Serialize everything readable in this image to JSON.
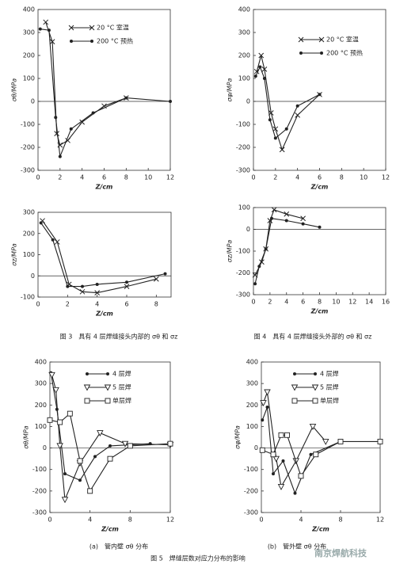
{
  "chart_data": [
    {
      "type": "line",
      "ylabel": "σθ/MPa",
      "xlabel": "Z/cm",
      "xlim": [
        0,
        12
      ],
      "xticks": [
        0,
        2,
        4,
        6,
        8,
        10,
        12
      ],
      "ylim": [
        -300,
        400
      ],
      "yticks": [
        -300,
        -200,
        -100,
        0,
        100,
        200,
        300,
        400
      ],
      "series": [
        {
          "name": "20 °C 室温",
          "marker": "x",
          "color": "#222",
          "x": [
            0.7,
            1.3,
            1.7,
            2,
            2.7,
            4,
            6,
            8
          ],
          "values": [
            345,
            260,
            -140,
            -190,
            -170,
            -90,
            -20,
            15
          ]
        },
        {
          "name": "200 °C 预热",
          "marker": "dot",
          "color": "#222",
          "x": [
            0.2,
            1,
            1.6,
            2,
            3,
            5,
            8,
            12
          ],
          "values": [
            315,
            310,
            -70,
            -240,
            -120,
            -50,
            15,
            0
          ]
        }
      ]
    },
    {
      "type": "line",
      "ylabel": "σφ/MPa",
      "xlabel": "Z/cm",
      "xlim": [
        0,
        12
      ],
      "xticks": [
        0,
        2,
        4,
        6,
        8,
        10,
        12
      ],
      "ylim": [
        -300,
        400
      ],
      "yticks": [
        -300,
        -200,
        -100,
        0,
        100,
        200,
        300,
        400
      ],
      "series": [
        {
          "name": "20 °C 室温",
          "marker": "x",
          "color": "#222",
          "x": [
            0.3,
            0.7,
            1,
            1.6,
            2,
            2.6,
            4,
            6
          ],
          "values": [
            130,
            200,
            140,
            -50,
            -120,
            -210,
            -60,
            30
          ]
        },
        {
          "name": "200 °C 预热",
          "marker": "dot",
          "color": "#222",
          "x": [
            0.2,
            0.6,
            1,
            1.5,
            2,
            3,
            4,
            6
          ],
          "values": [
            110,
            150,
            100,
            -80,
            -160,
            -120,
            -20,
            30
          ]
        }
      ]
    },
    {
      "type": "line",
      "ylabel": "σz/MPa",
      "xlabel": "Z/cm",
      "xlim": [
        0,
        9
      ],
      "xticks": [
        0,
        2,
        4,
        6,
        8
      ],
      "ylim": [
        -100,
        300
      ],
      "yticks": [
        -100,
        0,
        100,
        200,
        300
      ],
      "series": [
        {
          "marker": "x",
          "color": "#222",
          "x": [
            0.3,
            1.3,
            2.1,
            3,
            4,
            6,
            8
          ],
          "values": [
            260,
            160,
            -40,
            -75,
            -80,
            -50,
            -15
          ]
        },
        {
          "marker": "dot",
          "color": "#222",
          "x": [
            0.2,
            1,
            2,
            3,
            4,
            6,
            8.6
          ],
          "values": [
            250,
            170,
            -50,
            -50,
            -40,
            -30,
            10
          ]
        }
      ]
    },
    {
      "type": "line",
      "ylabel": "σz/MPa",
      "xlabel": "Z/cm",
      "xlim": [
        0,
        16
      ],
      "xticks": [
        0,
        2,
        4,
        6,
        8,
        10,
        12,
        14,
        16
      ],
      "ylim": [
        -300,
        100
      ],
      "yticks": [
        -300,
        -200,
        -100,
        0,
        100
      ],
      "series": [
        {
          "marker": "x",
          "color": "#222",
          "x": [
            0.2,
            1,
            1.5,
            2,
            2.5,
            4,
            6
          ],
          "values": [
            -210,
            -150,
            -90,
            40,
            90,
            70,
            50
          ]
        },
        {
          "marker": "dot",
          "color": "#222",
          "x": [
            0.2,
            0.7,
            1.5,
            2.2,
            4,
            6,
            8
          ],
          "values": [
            -250,
            -170,
            -90,
            50,
            40,
            25,
            10
          ]
        }
      ]
    },
    {
      "type": "line",
      "ylabel": "σθ/MPa",
      "xlabel": "Z/cm",
      "xlim": [
        0,
        12
      ],
      "xticks": [
        0,
        4,
        8,
        12
      ],
      "ylim": [
        -300,
        400
      ],
      "yticks": [
        -300,
        -200,
        -100,
        0,
        100,
        200,
        300,
        400
      ],
      "series": [
        {
          "name": "4 层焊",
          "marker": "dot",
          "color": "#222",
          "x": [
            0.1,
            0.7,
            1.5,
            3,
            4.5,
            6,
            10
          ],
          "values": [
            350,
            180,
            -120,
            -150,
            -40,
            10,
            20
          ]
        },
        {
          "name": "5 层焊",
          "marker": "triangle",
          "color": "#222",
          "x": [
            0.2,
            0.6,
            1,
            1.5,
            3,
            5,
            7.5,
            12
          ],
          "values": [
            340,
            270,
            10,
            -240,
            -70,
            70,
            20,
            15
          ]
        },
        {
          "name": "单层焊",
          "marker": "square",
          "color": "#222",
          "x": [
            0,
            1,
            2,
            3,
            4,
            6,
            8,
            12
          ],
          "values": [
            130,
            120,
            160,
            -60,
            -200,
            -50,
            10,
            20
          ]
        }
      ]
    },
    {
      "type": "line",
      "ylabel": "σφ/MPa",
      "xlabel": "Z/cm",
      "xlim": [
        0,
        12
      ],
      "xticks": [
        0,
        4,
        8,
        12
      ],
      "ylim": [
        -300,
        400
      ],
      "yticks": [
        -300,
        -200,
        -100,
        0,
        100,
        200,
        300,
        400
      ],
      "series": [
        {
          "name": "4 层焊",
          "marker": "dot",
          "color": "#222",
          "x": [
            0.1,
            0.6,
            1.2,
            2.2,
            3.4,
            5,
            8
          ],
          "values": [
            130,
            190,
            -120,
            -60,
            -210,
            -30,
            30
          ]
        },
        {
          "name": "5 层焊",
          "marker": "triangle",
          "color": "#222",
          "x": [
            0.2,
            0.6,
            1.5,
            2,
            3.5,
            5.2,
            6.5
          ],
          "values": [
            210,
            260,
            -50,
            -180,
            -60,
            100,
            30
          ]
        },
        {
          "name": "单层焊",
          "marker": "square",
          "color": "#222",
          "x": [
            0.1,
            1.2,
            2,
            2.6,
            4,
            5.5,
            8,
            12
          ],
          "values": [
            -10,
            -30,
            60,
            60,
            -130,
            -30,
            30,
            30
          ]
        }
      ]
    }
  ],
  "captions": {
    "fig3": "图 3　具有 4 层焊缝接头内部的 σθ 和 σz",
    "fig4": "图 4　具有 4 层焊缝接头外部的 σθ 和 σz",
    "sub_a": "(a)　管内壁 σθ 分布",
    "sub_b": "(b)　管外壁 σθ 分布",
    "fig5": "图 5　焊缝层数对应力分布的影响"
  },
  "watermark": "南京焊航科技"
}
